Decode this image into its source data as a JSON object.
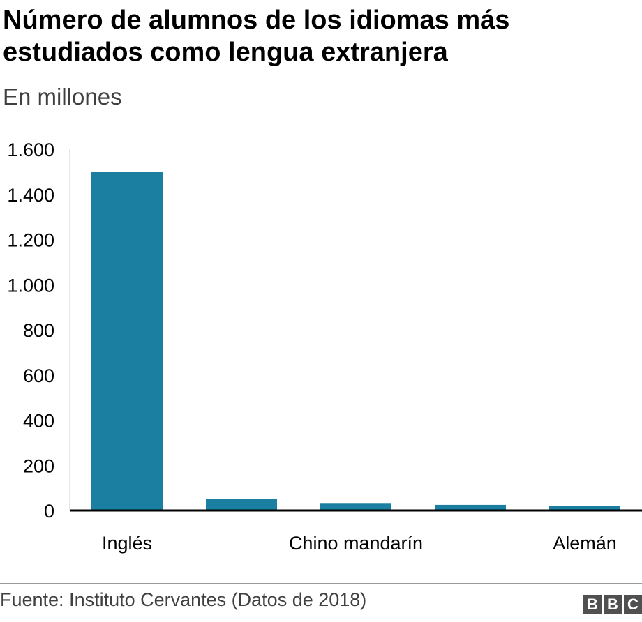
{
  "chart_data": {
    "type": "bar",
    "title": "Número de alumnos de los idiomas más estudiados como lengua extranjera",
    "subtitle": "En millones",
    "categories": [
      "Inglés",
      "",
      "Chino mandarín",
      "",
      "Alemán"
    ],
    "values": [
      1500,
      50,
      30,
      25,
      20
    ],
    "ylim": [
      0,
      1600
    ],
    "yticks": [
      0,
      200,
      400,
      600,
      800,
      1000,
      1200,
      1400,
      1600
    ],
    "ytick_labels": [
      "0",
      "200",
      "400",
      "600",
      "800",
      "1.000",
      "1.200",
      "1.400",
      "1.600"
    ],
    "xlabel": "",
    "ylabel": "",
    "grid": false,
    "bar_color": "#1a7fa0"
  },
  "footer": {
    "source": "Fuente: Instituto Cervantes (Datos de 2018)",
    "logo": [
      "B",
      "B",
      "C"
    ]
  }
}
